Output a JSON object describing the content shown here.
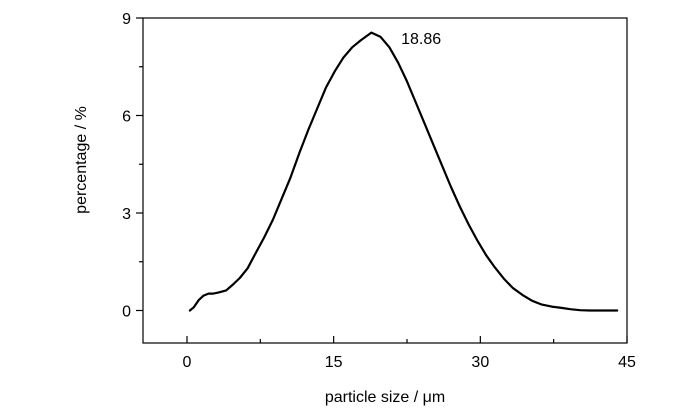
{
  "chart_data": {
    "type": "line",
    "title": "",
    "xlabel": "particle size / μm",
    "ylabel": "percentage / %",
    "xlim": [
      -4.5,
      45
    ],
    "ylim": [
      -1,
      9
    ],
    "x_ticks": [
      0,
      15,
      30,
      45
    ],
    "y_ticks": [
      0,
      3,
      6,
      9
    ],
    "x_tick_labels": [
      "0",
      "15",
      "30",
      "45"
    ],
    "y_tick_labels": [
      "0",
      "3",
      "6",
      "9"
    ],
    "grid": false,
    "legend": "none",
    "line_color": "#000000",
    "annotations": [
      {
        "text": "18.86",
        "x": 21.9,
        "y": 8.2
      }
    ],
    "series": [
      {
        "x": [
          0.3,
          0.7,
          1.2,
          1.7,
          2.2,
          2.7,
          3.3,
          4.0,
          4.7,
          5.4,
          6.2,
          7.0,
          7.9,
          8.8,
          9.7,
          10.6,
          11.5,
          12.4,
          13.3,
          14.2,
          15.1,
          16.0,
          16.9,
          17.8,
          18.86,
          19.8,
          20.7,
          21.6,
          22.5,
          23.4,
          24.3,
          25.2,
          26.1,
          27.0,
          27.9,
          28.8,
          29.7,
          30.6,
          31.5,
          32.4,
          33.3,
          34.3,
          35.3,
          36.3,
          37.3,
          38.3,
          39.2,
          40.2,
          41.2,
          42.2,
          43.2,
          44.0
        ],
        "y": [
          0.0,
          0.1,
          0.32,
          0.46,
          0.52,
          0.52,
          0.56,
          0.62,
          0.8,
          1.0,
          1.3,
          1.75,
          2.25,
          2.8,
          3.45,
          4.1,
          4.85,
          5.55,
          6.2,
          6.85,
          7.35,
          7.78,
          8.1,
          8.32,
          8.55,
          8.42,
          8.1,
          7.62,
          7.05,
          6.4,
          5.75,
          5.1,
          4.45,
          3.8,
          3.2,
          2.65,
          2.15,
          1.7,
          1.32,
          0.98,
          0.7,
          0.48,
          0.3,
          0.18,
          0.12,
          0.08,
          0.04,
          0.01,
          0.0,
          0.0,
          0.0,
          0.0
        ]
      }
    ]
  }
}
